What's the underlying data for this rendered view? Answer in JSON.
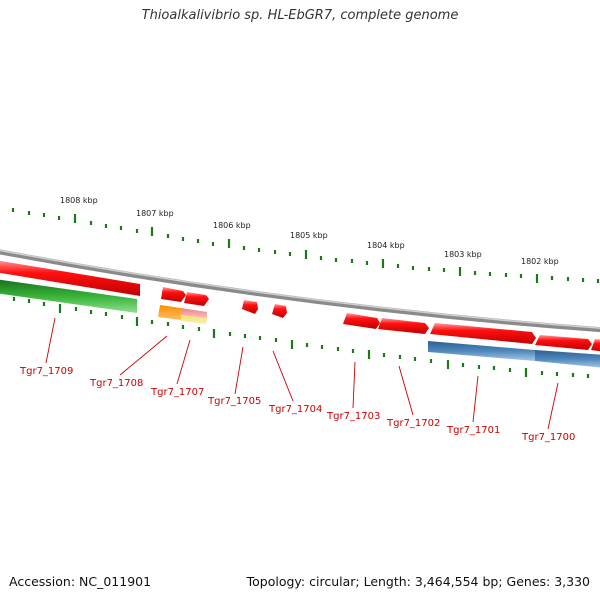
{
  "title": "Thioalkalivibrio sp. HL-EbGR7, complete genome",
  "footer": {
    "accession": "Accession: NC_011901",
    "stats": "Topology: circular; Length: 3,464,554 bp; Genes: 3,330"
  },
  "scale_labels": [
    "1808 kbp",
    "1807 kbp",
    "1806 kbp",
    "1805 kbp",
    "1804 kbp",
    "1803 kbp",
    "1802 kbp"
  ],
  "gene_labels": [
    "Tgr7_1709",
    "Tgr7_1708",
    "Tgr7_1707",
    "Tgr7_1705",
    "Tgr7_1704",
    "Tgr7_1703",
    "Tgr7_1702",
    "Tgr7_1701",
    "Tgr7_1700"
  ],
  "colors": {
    "forward_gene": "#ff0000",
    "reverse_green": "#2aa02a",
    "reverse_blue": "#4a80b4",
    "orange_gene": "#ff9a1a",
    "pink_gene": "#f08080",
    "backbone": "#888888",
    "tick": "#1a7a1a",
    "label": "#cc0000"
  }
}
